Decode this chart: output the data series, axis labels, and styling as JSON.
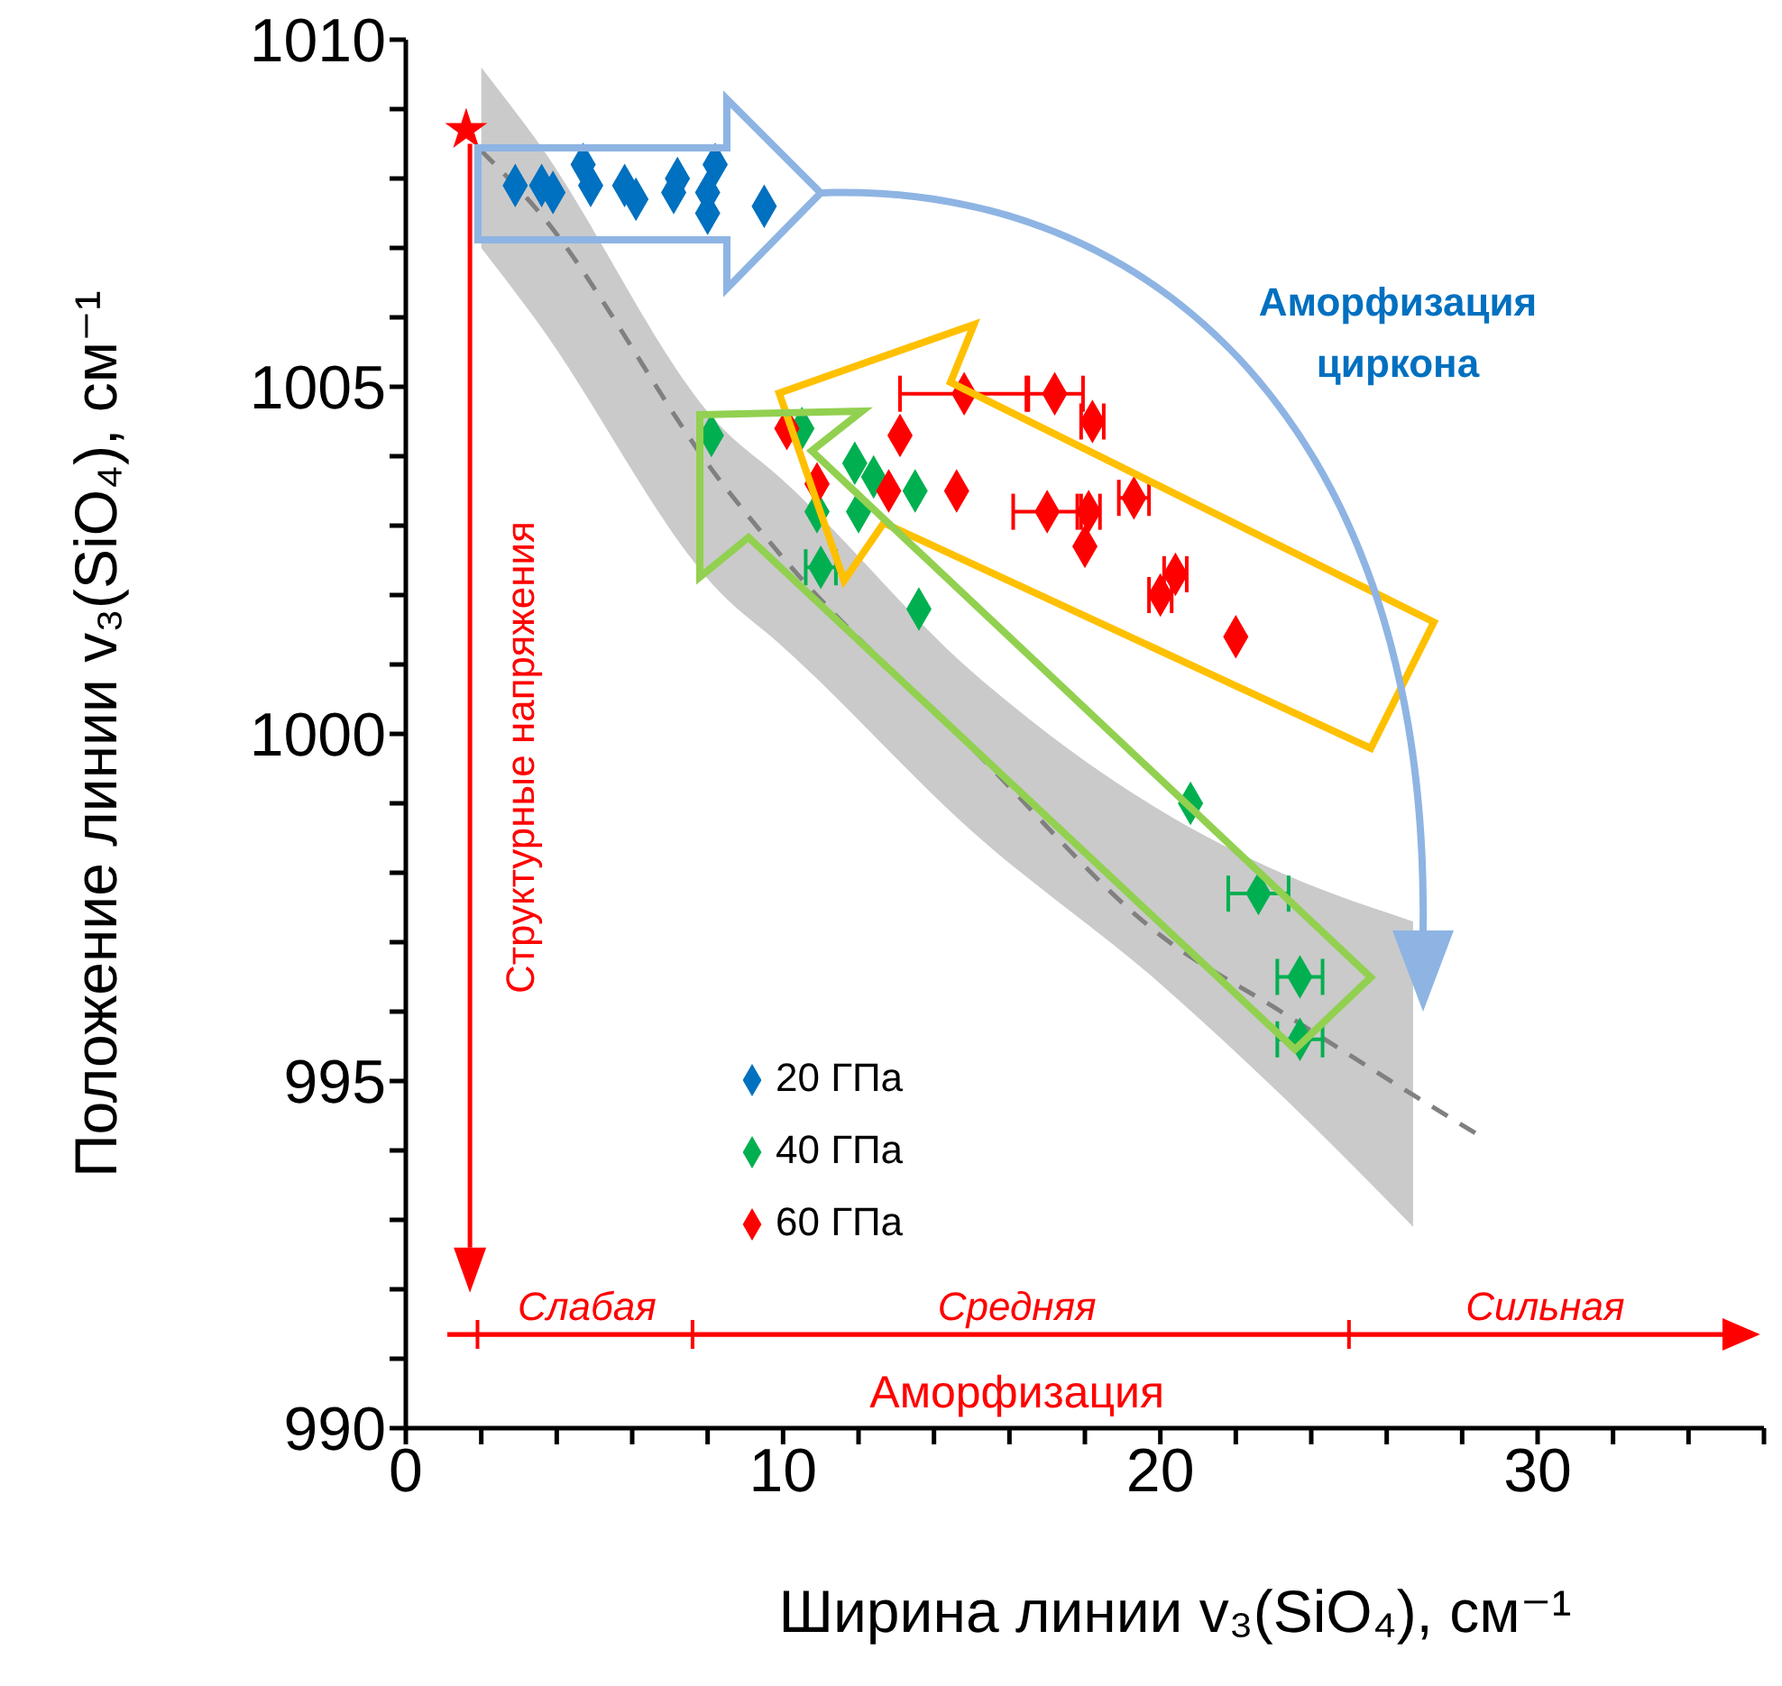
{
  "chart_data": {
    "type": "scatter",
    "xlabel": "Ширина линии v₃(SiO₄), см⁻¹",
    "ylabel": "Положение линии v₃(SiO₄), см⁻¹",
    "xlim": [
      0,
      36
    ],
    "xticks": [
      0,
      {
        "value": 2,
        "label": null
      },
      {
        "value": 4,
        "label": null
      },
      {
        "value": 6,
        "label": null
      },
      {
        "value": 8,
        "label": null
      },
      10,
      {
        "value": 12,
        "label": null
      },
      {
        "value": 14,
        "label": null
      },
      {
        "value": 16,
        "label": null
      },
      {
        "value": 18,
        "label": null
      },
      20,
      {
        "value": 22,
        "label": null
      },
      {
        "value": 24,
        "label": null
      },
      {
        "value": 26,
        "label": null
      },
      {
        "value": 28,
        "label": null
      },
      30,
      {
        "value": 32,
        "label": null
      },
      {
        "value": 34,
        "label": null
      },
      {
        "value": 36,
        "label": null
      }
    ],
    "ylim": [
      990,
      1010
    ],
    "yticks": [
      990,
      {
        "value": 991,
        "label": null
      },
      {
        "value": 992,
        "label": null
      },
      {
        "value": 993,
        "label": null
      },
      {
        "value": 994,
        "label": null
      },
      995,
      {
        "value": 996,
        "label": null
      },
      {
        "value": 997,
        "label": null
      },
      {
        "value": 998,
        "label": null
      },
      {
        "value": 999,
        "label": null
      },
      1000,
      {
        "value": 1001,
        "label": null
      },
      {
        "value": 1002,
        "label": null
      },
      {
        "value": 1003,
        "label": null
      },
      {
        "value": 1004,
        "label": null
      },
      1005,
      {
        "value": 1006,
        "label": null
      },
      {
        "value": 1007,
        "label": null
      },
      {
        "value": 1008,
        "label": null
      },
      {
        "value": 1009,
        "label": null
      },
      1010
    ],
    "marker": "diamond",
    "legend": "bottom left",
    "annotations": [
      "Аморфизация циркона",
      "Структурные напряжения",
      "Слабая",
      "Средняя",
      "Сильная",
      "Аморфизация"
    ],
    "series": [
      {
        "type": "line",
        "color": "#808080",
        "line_style": "dashed",
        "marker": "none",
        "x": [
          2,
          3.4,
          8.4,
          9.9,
          15,
          20,
          23.2,
          26.7,
          28.5
        ],
        "values": [
          1008.4,
          1007.6,
          1003.6,
          1002.6,
          999.8,
          997.1,
          996.0,
          994.8,
          994.2
        ],
        "lower": [
          1007.0,
          1006.0,
          1002.0,
          1001.3,
          998.6,
          996.4,
          994.8,
          992.9,
          null
        ],
        "upper": [
          1009.6,
          1008.6,
          1004.4,
          1003.7,
          1000.9,
          998.9,
          998.0,
          997.3,
          null
        ]
      },
      {
        "color": "#ff0000",
        "marker": "star",
        "x": [
          1.6
        ],
        "values": [
          1008.7
        ]
      },
      {
        "name": "20 ГПа",
        "color": "#0070c0",
        "x": [
          2.9,
          3.6,
          3.9,
          4.7,
          4.9,
          5.8,
          6.1,
          7.2,
          7.1,
          8.2,
          8.0,
          8.0,
          9.5
        ],
        "values": [
          1007.9,
          1007.9,
          1007.8,
          1008.2,
          1007.9,
          1007.9,
          1007.7,
          1008.0,
          1007.8,
          1008.2,
          1007.8,
          1007.5,
          1007.6
        ]
      },
      {
        "name": "40 ГПа",
        "color": "#00b050",
        "x": [
          8.1,
          10.5,
          11.9,
          12.4,
          13.5,
          10.9,
          12.0,
          11.0,
          13.6,
          20.8,
          22.6,
          23.7,
          23.7
        ],
        "values": [
          1004.3,
          1004.4,
          1003.9,
          1003.7,
          1003.5,
          1003.2,
          1003.2,
          1002.4,
          1001.8,
          999.0,
          997.7,
          996.5,
          995.6
        ],
        "xerrors": [
          null,
          null,
          null,
          null,
          null,
          null,
          null,
          0.4,
          null,
          null,
          0.8,
          0.6,
          0.6
        ]
      },
      {
        "name": "60 ГПа",
        "color": "#ff0000",
        "x": [
          14.8,
          17.2,
          18.2,
          13.1,
          10.1,
          10.9,
          12.8,
          14.6,
          17.0,
          18.1,
          19.3,
          18.0,
          20.4,
          20.0,
          22.0
        ],
        "values": [
          1004.9,
          1004.9,
          1004.5,
          1004.3,
          1004.4,
          1003.6,
          1003.5,
          1003.5,
          1003.2,
          1003.2,
          1003.4,
          1002.7,
          1002.3,
          1002.0,
          1001.4
        ],
        "xerrors": [
          1.7,
          0.75,
          0.3,
          null,
          null,
          null,
          null,
          null,
          0.9,
          0.3,
          0.4,
          null,
          0.3,
          0.3,
          null
        ]
      }
    ]
  }
}
